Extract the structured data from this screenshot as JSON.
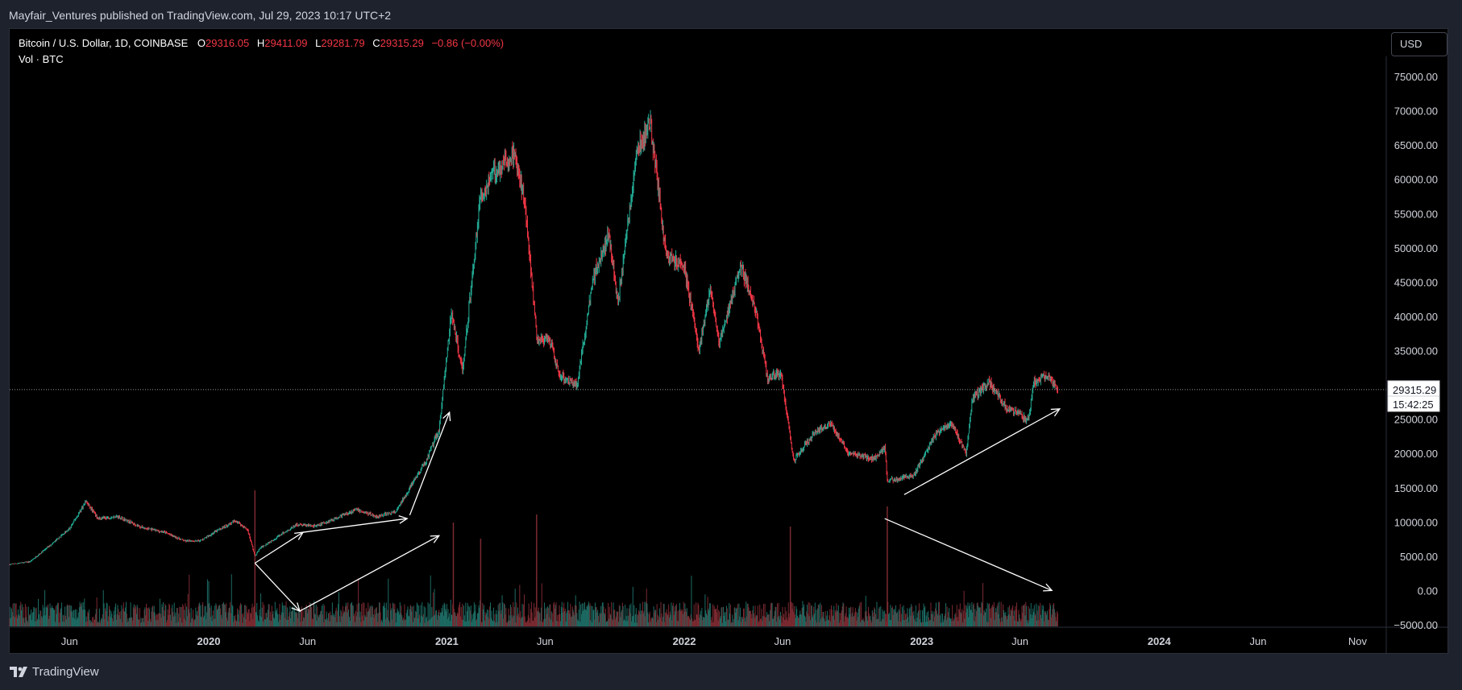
{
  "header": {
    "caption": "Mayfair_Ventures published on TradingView.com, Jul 29, 2023 10:17 UTC+2"
  },
  "legend": {
    "symbol": "Bitcoin / U.S. Dollar, 1D, COINBASE",
    "o_label": "O",
    "o_value": "29316.05",
    "h_label": "H",
    "h_value": "29411.09",
    "l_label": "L",
    "l_value": "29281.79",
    "c_label": "C",
    "c_value": "29315.29",
    "change": "−0.86 (−0.00%)",
    "volume_label": "Vol · BTC"
  },
  "currency_button": "USD",
  "price_tag": {
    "price": "29315.29",
    "countdown": "15:42:25"
  },
  "footer": {
    "brand": "TradingView"
  },
  "colors": {
    "up": "#26a69a",
    "down": "#f23645",
    "up_candle": "#22ab94",
    "annotation": "#ffffff"
  },
  "chart_data": {
    "type": "candlestick",
    "interval": "1D",
    "y_axis_position": "right",
    "ylim": [
      -5000,
      77000
    ],
    "y_ticks": [
      "75000.00",
      "70000.00",
      "65000.00",
      "60000.00",
      "55000.00",
      "50000.00",
      "45000.00",
      "40000.00",
      "35000.00",
      "30000.00",
      "25000.00",
      "20000.00",
      "15000.00",
      "10000.00",
      "5000.00",
      "0.00",
      "−5000.00"
    ],
    "y_tick_values": [
      75000,
      70000,
      65000,
      60000,
      55000,
      50000,
      45000,
      40000,
      35000,
      30000,
      25000,
      20000,
      15000,
      10000,
      5000,
      0,
      -5000
    ],
    "x_ticks": [
      "Jun",
      "2020",
      "Jun",
      "2021",
      "Jun",
      "2022",
      "Jun",
      "2023",
      "Jun",
      "2024",
      "Jun",
      "Nov"
    ],
    "x_tick_dates": [
      "2019-06-01",
      "2020-01-01",
      "2020-06-01",
      "2021-01-01",
      "2021-06-01",
      "2022-01-01",
      "2022-06-01",
      "2023-01-01",
      "2023-06-01",
      "2024-01-01",
      "2024-06-01",
      "2024-11-01"
    ],
    "x_range": [
      "2019-03-01",
      "2024-12-15"
    ],
    "last_price": 29315.29,
    "price_path": [
      [
        "2019-03-01",
        3800
      ],
      [
        "2019-04-01",
        4200
      ],
      [
        "2019-05-01",
        6500
      ],
      [
        "2019-06-01",
        9000
      ],
      [
        "2019-06-26",
        13000
      ],
      [
        "2019-07-15",
        10500
      ],
      [
        "2019-08-15",
        10800
      ],
      [
        "2019-09-20",
        9200
      ],
      [
        "2019-10-25",
        8500
      ],
      [
        "2019-11-25",
        7200
      ],
      [
        "2019-12-20",
        7300
      ],
      [
        "2020-01-15",
        8800
      ],
      [
        "2020-02-12",
        10200
      ],
      [
        "2020-03-01",
        8800
      ],
      [
        "2020-03-12",
        5000
      ],
      [
        "2020-03-20",
        6200
      ],
      [
        "2020-04-30",
        8700
      ],
      [
        "2020-05-15",
        9600
      ],
      [
        "2020-06-15",
        9400
      ],
      [
        "2020-07-25",
        11000
      ],
      [
        "2020-08-15",
        11800
      ],
      [
        "2020-09-15",
        10800
      ],
      [
        "2020-10-15",
        11500
      ],
      [
        "2020-11-05",
        15000
      ],
      [
        "2020-12-01",
        19000
      ],
      [
        "2020-12-20",
        23500
      ],
      [
        "2021-01-08",
        40500
      ],
      [
        "2021-01-25",
        32000
      ],
      [
        "2021-02-21",
        57000
      ],
      [
        "2021-03-13",
        61000
      ],
      [
        "2021-04-14",
        63500
      ],
      [
        "2021-05-01",
        57000
      ],
      [
        "2021-05-19",
        37000
      ],
      [
        "2021-06-10",
        36000
      ],
      [
        "2021-06-22",
        31500
      ],
      [
        "2021-07-20",
        30000
      ],
      [
        "2021-08-15",
        46000
      ],
      [
        "2021-09-07",
        52000
      ],
      [
        "2021-09-21",
        42000
      ],
      [
        "2021-10-20",
        64000
      ],
      [
        "2021-11-10",
        68000
      ],
      [
        "2021-12-04",
        49000
      ],
      [
        "2022-01-01",
        47000
      ],
      [
        "2022-01-24",
        35000
      ],
      [
        "2022-02-10",
        44000
      ],
      [
        "2022-02-24",
        36000
      ],
      [
        "2022-03-29",
        47500
      ],
      [
        "2022-04-20",
        41000
      ],
      [
        "2022-05-09",
        31000
      ],
      [
        "2022-05-30",
        31500
      ],
      [
        "2022-06-18",
        19000
      ],
      [
        "2022-07-20",
        23000
      ],
      [
        "2022-08-14",
        24500
      ],
      [
        "2022-09-10",
        20000
      ],
      [
        "2022-10-20",
        19200
      ],
      [
        "2022-11-05",
        21000
      ],
      [
        "2022-11-09",
        16000
      ],
      [
        "2022-12-20",
        16800
      ],
      [
        "2023-01-20",
        22500
      ],
      [
        "2023-02-16",
        24500
      ],
      [
        "2023-03-10",
        20000
      ],
      [
        "2023-03-20",
        28000
      ],
      [
        "2023-04-14",
        30500
      ],
      [
        "2023-05-12",
        26500
      ],
      [
        "2023-06-14",
        25000
      ],
      [
        "2023-06-22",
        30500
      ],
      [
        "2023-07-13",
        31500
      ],
      [
        "2023-07-29",
        29315.29
      ]
    ],
    "annotations": [
      {
        "type": "arrow",
        "from": [
          "2020-03-12",
          4000
        ],
        "to": [
          "2020-05-25",
          8500
        ]
      },
      {
        "type": "arrow",
        "from": [
          "2020-05-25",
          8500
        ],
        "to": [
          "2020-11-01",
          10500
        ]
      },
      {
        "type": "arrow",
        "from": [
          "2020-11-05",
          11000
        ],
        "to": [
          "2021-01-05",
          26000
        ]
      },
      {
        "type": "arrow",
        "from": [
          "2020-03-12",
          4000
        ],
        "to": [
          "2020-05-20",
          -3000
        ]
      },
      {
        "type": "arrow",
        "from": [
          "2020-05-20",
          -3000
        ],
        "to": [
          "2020-12-20",
          8000
        ]
      },
      {
        "type": "arrow",
        "from": [
          "2022-11-05",
          10500
        ],
        "to": [
          "2023-07-20",
          0
        ]
      },
      {
        "type": "arrow",
        "from": [
          "2022-12-05",
          14000
        ],
        "to": [
          "2023-08-01",
          26500
        ]
      }
    ]
  }
}
